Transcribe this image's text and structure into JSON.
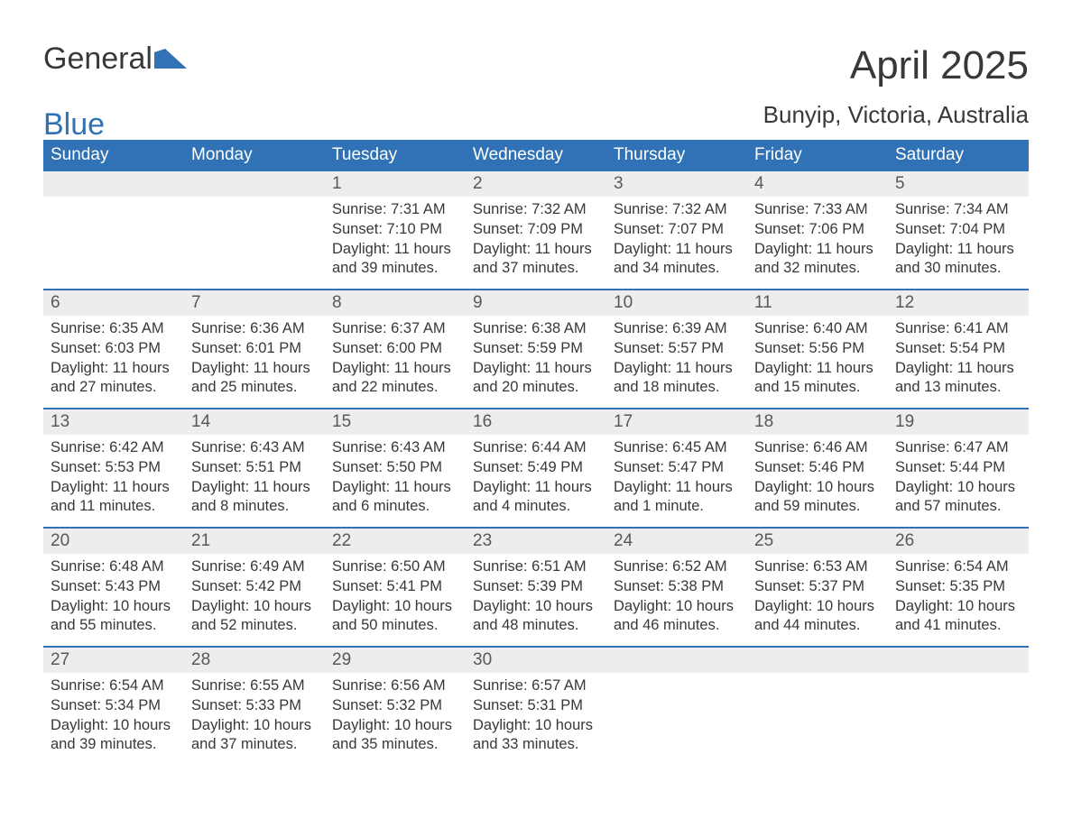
{
  "brand": {
    "word1": "General",
    "word2": "Blue",
    "logo_color": "#3072b5",
    "text_color": "#383838"
  },
  "title": "April 2025",
  "subtitle": "Bunyip, Victoria, Australia",
  "colors": {
    "header_bg": "#3072b5",
    "header_text": "#ffffff",
    "daynum_bg": "#ededed",
    "daynum_text": "#585858",
    "body_text": "#383838",
    "week_divider": "#3072b5",
    "page_bg": "#ffffff"
  },
  "typography": {
    "title_fontsize": 44,
    "subtitle_fontsize": 26,
    "weekday_fontsize": 19,
    "daynum_fontsize": 19,
    "body_fontsize": 16.5,
    "font_family": "Arial"
  },
  "weekdays": [
    "Sunday",
    "Monday",
    "Tuesday",
    "Wednesday",
    "Thursday",
    "Friday",
    "Saturday"
  ],
  "weeks": [
    [
      null,
      null,
      {
        "n": "1",
        "sunrise": "Sunrise: 7:31 AM",
        "sunset": "Sunset: 7:10 PM",
        "day1": "Daylight: 11 hours",
        "day2": "and 39 minutes."
      },
      {
        "n": "2",
        "sunrise": "Sunrise: 7:32 AM",
        "sunset": "Sunset: 7:09 PM",
        "day1": "Daylight: 11 hours",
        "day2": "and 37 minutes."
      },
      {
        "n": "3",
        "sunrise": "Sunrise: 7:32 AM",
        "sunset": "Sunset: 7:07 PM",
        "day1": "Daylight: 11 hours",
        "day2": "and 34 minutes."
      },
      {
        "n": "4",
        "sunrise": "Sunrise: 7:33 AM",
        "sunset": "Sunset: 7:06 PM",
        "day1": "Daylight: 11 hours",
        "day2": "and 32 minutes."
      },
      {
        "n": "5",
        "sunrise": "Sunrise: 7:34 AM",
        "sunset": "Sunset: 7:04 PM",
        "day1": "Daylight: 11 hours",
        "day2": "and 30 minutes."
      }
    ],
    [
      {
        "n": "6",
        "sunrise": "Sunrise: 6:35 AM",
        "sunset": "Sunset: 6:03 PM",
        "day1": "Daylight: 11 hours",
        "day2": "and 27 minutes."
      },
      {
        "n": "7",
        "sunrise": "Sunrise: 6:36 AM",
        "sunset": "Sunset: 6:01 PM",
        "day1": "Daylight: 11 hours",
        "day2": "and 25 minutes."
      },
      {
        "n": "8",
        "sunrise": "Sunrise: 6:37 AM",
        "sunset": "Sunset: 6:00 PM",
        "day1": "Daylight: 11 hours",
        "day2": "and 22 minutes."
      },
      {
        "n": "9",
        "sunrise": "Sunrise: 6:38 AM",
        "sunset": "Sunset: 5:59 PM",
        "day1": "Daylight: 11 hours",
        "day2": "and 20 minutes."
      },
      {
        "n": "10",
        "sunrise": "Sunrise: 6:39 AM",
        "sunset": "Sunset: 5:57 PM",
        "day1": "Daylight: 11 hours",
        "day2": "and 18 minutes."
      },
      {
        "n": "11",
        "sunrise": "Sunrise: 6:40 AM",
        "sunset": "Sunset: 5:56 PM",
        "day1": "Daylight: 11 hours",
        "day2": "and 15 minutes."
      },
      {
        "n": "12",
        "sunrise": "Sunrise: 6:41 AM",
        "sunset": "Sunset: 5:54 PM",
        "day1": "Daylight: 11 hours",
        "day2": "and 13 minutes."
      }
    ],
    [
      {
        "n": "13",
        "sunrise": "Sunrise: 6:42 AM",
        "sunset": "Sunset: 5:53 PM",
        "day1": "Daylight: 11 hours",
        "day2": "and 11 minutes."
      },
      {
        "n": "14",
        "sunrise": "Sunrise: 6:43 AM",
        "sunset": "Sunset: 5:51 PM",
        "day1": "Daylight: 11 hours",
        "day2": "and 8 minutes."
      },
      {
        "n": "15",
        "sunrise": "Sunrise: 6:43 AM",
        "sunset": "Sunset: 5:50 PM",
        "day1": "Daylight: 11 hours",
        "day2": "and 6 minutes."
      },
      {
        "n": "16",
        "sunrise": "Sunrise: 6:44 AM",
        "sunset": "Sunset: 5:49 PM",
        "day1": "Daylight: 11 hours",
        "day2": "and 4 minutes."
      },
      {
        "n": "17",
        "sunrise": "Sunrise: 6:45 AM",
        "sunset": "Sunset: 5:47 PM",
        "day1": "Daylight: 11 hours",
        "day2": "and 1 minute."
      },
      {
        "n": "18",
        "sunrise": "Sunrise: 6:46 AM",
        "sunset": "Sunset: 5:46 PM",
        "day1": "Daylight: 10 hours",
        "day2": "and 59 minutes."
      },
      {
        "n": "19",
        "sunrise": "Sunrise: 6:47 AM",
        "sunset": "Sunset: 5:44 PM",
        "day1": "Daylight: 10 hours",
        "day2": "and 57 minutes."
      }
    ],
    [
      {
        "n": "20",
        "sunrise": "Sunrise: 6:48 AM",
        "sunset": "Sunset: 5:43 PM",
        "day1": "Daylight: 10 hours",
        "day2": "and 55 minutes."
      },
      {
        "n": "21",
        "sunrise": "Sunrise: 6:49 AM",
        "sunset": "Sunset: 5:42 PM",
        "day1": "Daylight: 10 hours",
        "day2": "and 52 minutes."
      },
      {
        "n": "22",
        "sunrise": "Sunrise: 6:50 AM",
        "sunset": "Sunset: 5:41 PM",
        "day1": "Daylight: 10 hours",
        "day2": "and 50 minutes."
      },
      {
        "n": "23",
        "sunrise": "Sunrise: 6:51 AM",
        "sunset": "Sunset: 5:39 PM",
        "day1": "Daylight: 10 hours",
        "day2": "and 48 minutes."
      },
      {
        "n": "24",
        "sunrise": "Sunrise: 6:52 AM",
        "sunset": "Sunset: 5:38 PM",
        "day1": "Daylight: 10 hours",
        "day2": "and 46 minutes."
      },
      {
        "n": "25",
        "sunrise": "Sunrise: 6:53 AM",
        "sunset": "Sunset: 5:37 PM",
        "day1": "Daylight: 10 hours",
        "day2": "and 44 minutes."
      },
      {
        "n": "26",
        "sunrise": "Sunrise: 6:54 AM",
        "sunset": "Sunset: 5:35 PM",
        "day1": "Daylight: 10 hours",
        "day2": "and 41 minutes."
      }
    ],
    [
      {
        "n": "27",
        "sunrise": "Sunrise: 6:54 AM",
        "sunset": "Sunset: 5:34 PM",
        "day1": "Daylight: 10 hours",
        "day2": "and 39 minutes."
      },
      {
        "n": "28",
        "sunrise": "Sunrise: 6:55 AM",
        "sunset": "Sunset: 5:33 PM",
        "day1": "Daylight: 10 hours",
        "day2": "and 37 minutes."
      },
      {
        "n": "29",
        "sunrise": "Sunrise: 6:56 AM",
        "sunset": "Sunset: 5:32 PM",
        "day1": "Daylight: 10 hours",
        "day2": "and 35 minutes."
      },
      {
        "n": "30",
        "sunrise": "Sunrise: 6:57 AM",
        "sunset": "Sunset: 5:31 PM",
        "day1": "Daylight: 10 hours",
        "day2": "and 33 minutes."
      },
      null,
      null,
      null
    ]
  ]
}
